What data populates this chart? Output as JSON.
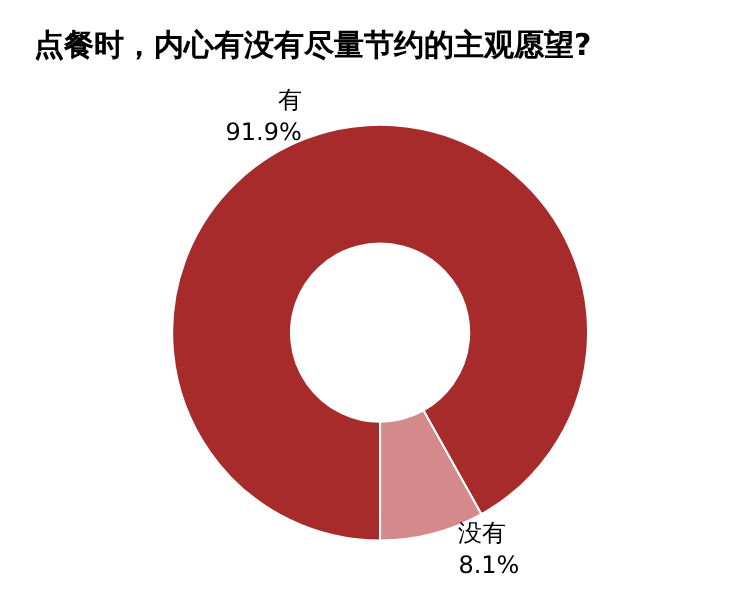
{
  "chart_data": {
    "type": "donut",
    "title": "点餐时，内心有没有尽量节约的主观愿望?",
    "categories": [
      "有",
      "没有"
    ],
    "values": [
      91.9,
      8.1
    ],
    "colors": [
      "#a82b2b",
      "#d48a8a"
    ],
    "value_labels": [
      "91.9%",
      "8.1%"
    ],
    "legend": false
  }
}
